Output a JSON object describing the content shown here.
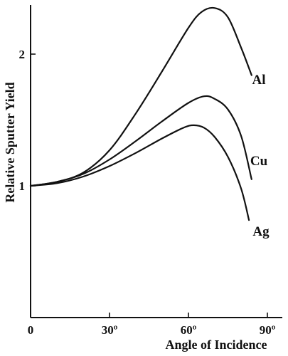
{
  "chart_data": {
    "type": "line",
    "title": "",
    "xlabel": "Angle of Incidence",
    "ylabel": "Relative Sputter Yield",
    "xlim": [
      0,
      90
    ],
    "ylim": [
      0,
      2.35
    ],
    "grid": false,
    "x_ticks": [
      {
        "value": 0,
        "label": "0"
      },
      {
        "value": 30,
        "label": "30º"
      },
      {
        "value": 60,
        "label": "60º"
      },
      {
        "value": 90,
        "label": "90º"
      }
    ],
    "y_ticks": [
      {
        "value": 1,
        "label": "1"
      },
      {
        "value": 2,
        "label": "2"
      }
    ],
    "series": [
      {
        "name": "Al",
        "x": [
          0,
          10,
          20,
          30,
          40,
          50,
          60,
          65,
          70,
          75,
          80,
          84
        ],
        "y": [
          1.0,
          1.03,
          1.1,
          1.27,
          1.55,
          1.87,
          2.2,
          2.32,
          2.35,
          2.28,
          2.05,
          1.84
        ]
      },
      {
        "name": "Cu",
        "x": [
          0,
          10,
          20,
          30,
          40,
          50,
          60,
          66,
          70,
          75,
          80,
          84
        ],
        "y": [
          1.0,
          1.03,
          1.09,
          1.2,
          1.34,
          1.49,
          1.63,
          1.68,
          1.66,
          1.58,
          1.38,
          1.05
        ]
      },
      {
        "name": "Ag",
        "x": [
          0,
          10,
          20,
          30,
          40,
          50,
          58,
          62,
          66,
          70,
          75,
          80,
          83
        ],
        "y": [
          1.0,
          1.02,
          1.07,
          1.15,
          1.25,
          1.36,
          1.44,
          1.46,
          1.44,
          1.37,
          1.22,
          0.98,
          0.74
        ]
      }
    ]
  }
}
